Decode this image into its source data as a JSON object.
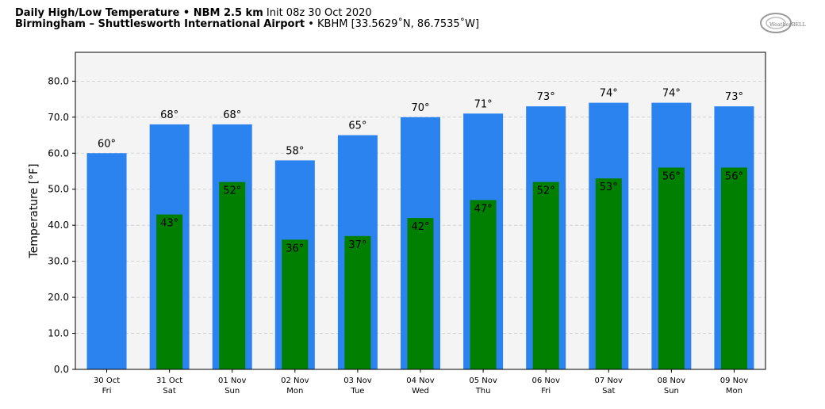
{
  "header": {
    "line1_bold": "Daily High/Low Temperature • NBM 2.5 km",
    "line1_rest": "Init 08z 30 Oct 2020",
    "line2_bold": "Birmingham – Shuttlesworth International Airport",
    "line2_rest": "• KBHM [33.5629˚N, 86.7535˚W]"
  },
  "logo": {
    "text": "WeatherBELL"
  },
  "colors": {
    "high": "#2b83ef",
    "low": "#007f00",
    "plot_bg": "#f4f4f4",
    "grid": "#cccccc"
  },
  "chart_data": {
    "type": "bar",
    "title": "Daily High/Low Temperature • NBM 2.5 km",
    "ylabel": "Temperature [°F]",
    "xlabel": "",
    "ylim": [
      0,
      88
    ],
    "yticks": [
      "0.0",
      "10.0",
      "20.0",
      "30.0",
      "40.0",
      "50.0",
      "60.0",
      "70.0",
      "80.0"
    ],
    "grid": true,
    "categories": [
      {
        "date": "30 Oct",
        "day": "Fri"
      },
      {
        "date": "31 Oct",
        "day": "Sat"
      },
      {
        "date": "01 Nov",
        "day": "Sun"
      },
      {
        "date": "02 Nov",
        "day": "Mon"
      },
      {
        "date": "03 Nov",
        "day": "Tue"
      },
      {
        "date": "04 Nov",
        "day": "Wed"
      },
      {
        "date": "05 Nov",
        "day": "Thu"
      },
      {
        "date": "06 Nov",
        "day": "Fri"
      },
      {
        "date": "07 Nov",
        "day": "Sat"
      },
      {
        "date": "08 Nov",
        "day": "Sun"
      },
      {
        "date": "09 Nov",
        "day": "Mon"
      }
    ],
    "series": [
      {
        "key": "high",
        "values": [
          60,
          68,
          68,
          58,
          65,
          70,
          71,
          73,
          74,
          74,
          73
        ],
        "labels": [
          "60°",
          "68°",
          "68°",
          "58°",
          "65°",
          "70°",
          "71°",
          "73°",
          "74°",
          "74°",
          "73°"
        ]
      },
      {
        "key": "low",
        "values": [
          null,
          43,
          52,
          36,
          37,
          42,
          47,
          52,
          53,
          56,
          56
        ],
        "labels": [
          null,
          "43°",
          "52°",
          "36°",
          "37°",
          "42°",
          "47°",
          "52°",
          "53°",
          "56°",
          "56°"
        ]
      }
    ]
  }
}
